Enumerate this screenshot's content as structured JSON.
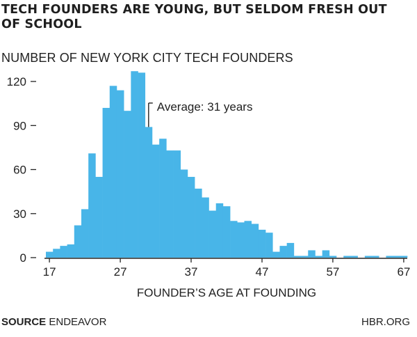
{
  "chart_data": {
    "type": "bar",
    "title": "TECH FOUNDERS ARE YOUNG, BUT SELDOM FRESH OUT OF SCHOOL",
    "ylabel": "NUMBER OF NEW YORK CITY TECH FOUNDERS",
    "xlabel": "FOUNDER’S AGE AT FOUNDING",
    "x": [
      17,
      18,
      19,
      20,
      21,
      22,
      23,
      24,
      25,
      26,
      27,
      28,
      29,
      30,
      31,
      32,
      33,
      34,
      35,
      36,
      37,
      38,
      39,
      40,
      41,
      42,
      43,
      44,
      45,
      46,
      47,
      48,
      49,
      50,
      51,
      52,
      53,
      54,
      55,
      56,
      57,
      58,
      59,
      60,
      61,
      62,
      63,
      64,
      65,
      66,
      67
    ],
    "values": [
      4,
      6,
      8,
      9,
      22,
      33,
      71,
      55,
      102,
      117,
      114,
      100,
      127,
      126,
      89,
      77,
      81,
      73,
      73,
      60,
      55,
      47,
      41,
      32,
      37,
      35,
      25,
      24,
      25,
      23,
      19,
      17,
      4,
      8,
      10,
      1,
      1,
      5,
      1,
      5,
      1,
      0,
      1,
      1,
      0,
      1,
      1,
      0,
      1,
      1,
      1
    ],
    "xlim": [
      17,
      67
    ],
    "ylim": [
      0,
      130
    ],
    "x_ticks": [
      17,
      27,
      37,
      47,
      57,
      67
    ],
    "y_ticks": [
      0,
      30,
      60,
      90,
      120
    ],
    "annotation": {
      "text": "Average: 31 years",
      "x": 31
    },
    "bar_color": "#48b5e8",
    "axis_color": "#222222"
  },
  "source_label": "SOURCE",
  "source_value": "ENDEAVOR",
  "credit": "HBR.ORG"
}
